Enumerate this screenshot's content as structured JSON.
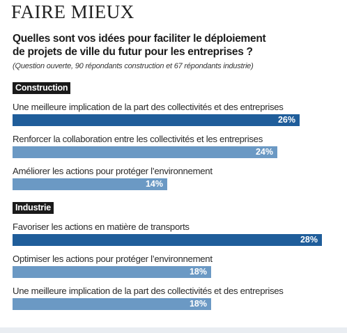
{
  "header": {
    "kicker": "FAIRE MIEUX",
    "question_line1": "Quelles sont vos idées pour faciliter le déploiement",
    "question_line2": "de projets de ville du futur pour les entreprises ?",
    "note": "(Question ouverte, 90 répondants construction et 67 répondants industrie)"
  },
  "colors": {
    "dark_bar": "#1f5d9a",
    "light_bar": "#6b99c4",
    "label_bg": "#1a1a1a"
  },
  "chart_data": [
    {
      "type": "bar",
      "orientation": "horizontal",
      "group_label": "Construction",
      "categories": [
        "Une meilleure implication de la part des collectivités et des entreprises",
        "Renforcer la collaboration entre les collectivités et les entreprises",
        "Améliorer les actions pour protéger l’environnement"
      ],
      "values": [
        26,
        24,
        14
      ],
      "value_labels": [
        "26%",
        "24%",
        "14%"
      ],
      "unit": "%"
    },
    {
      "type": "bar",
      "orientation": "horizontal",
      "group_label": "Industrie",
      "categories": [
        "Favoriser les actions en matière de transports",
        "Optimiser les actions pour protéger l’environnement",
        "Une meilleure implication de la part des collectivités et des entreprises"
      ],
      "values": [
        28,
        18,
        18
      ],
      "value_labels": [
        "28%",
        "18%",
        "18%"
      ],
      "unit": "%"
    }
  ]
}
